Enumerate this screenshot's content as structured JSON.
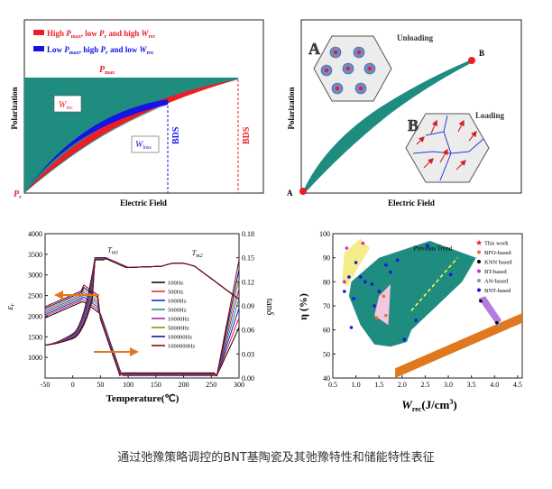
{
  "caption": "通过弛豫策略调控的BNT基陶瓷及其弛豫特性和储能特性表征",
  "colors": {
    "teal": "#1f8c80",
    "red": "#ee1c24",
    "blue": "#1414e6",
    "orange": "#e0781e"
  },
  "panel_a": {
    "legend_high": {
      "main": "High ",
      "p": "P",
      "pmax_sub": "max",
      "sep1": ", low ",
      "pr": "P",
      "pr_sub": "r",
      "sep2": " and high ",
      "w": "W",
      "w_sub": "rec"
    },
    "legend_low": {
      "main": "Low ",
      "p": "P",
      "pmax_sub": "max",
      "sep1": ", high ",
      "pr": "P",
      "pr_sub": "r",
      "sep2": " and low ",
      "w": "W",
      "w_sub": "rec"
    },
    "pmax": "P",
    "pmax_sub": "max",
    "pr": "P",
    "pr_sub": "r",
    "wrec": "W",
    "wrec_sub": "rec",
    "wloss": "W",
    "wloss_sub": "loss",
    "bds1": "BDS",
    "bds2": "BDS",
    "xlabel": "Electric Field",
    "ylabel": "Polarization"
  },
  "panel_b": {
    "label_a": "A",
    "label_b": "B",
    "unloading": "Unloading",
    "loading": "Loading",
    "inset_a": "A",
    "inset_b": "B",
    "xlabel": "Electric Field",
    "ylabel": "Polarization"
  },
  "chart_data": [
    {
      "type": "line",
      "xlabel": "Temperature(℃)",
      "ylabel_left": "εr",
      "ylabel_right": "tanδ",
      "xlim": [
        -50,
        300
      ],
      "ylim_left": [
        500,
        4000
      ],
      "ylim_right": [
        0,
        0.18
      ],
      "x_ticks": [
        "-50",
        "0",
        "50",
        "100",
        "150",
        "200",
        "250",
        "300"
      ],
      "y_ticks_left": [
        "1000",
        "1500",
        "2000",
        "2500",
        "3000",
        "3500",
        "4000"
      ],
      "y_ticks_right": [
        "0.00",
        "0.03",
        "0.06",
        "0.09",
        "0.12",
        "0.15",
        "0.18"
      ],
      "annotations": [
        {
          "t": "T",
          "sub": "m1",
          "x": 50,
          "y": 3550
        },
        {
          "t": "T",
          "sub": "m2",
          "x": 215,
          "y": 3480
        }
      ],
      "series": [
        {
          "name": "100Hz",
          "color": "#000000",
          "shift": 0
        },
        {
          "name": "500Hz",
          "color": "#ee1c24",
          "shift": 1
        },
        {
          "name": "1000Hz",
          "color": "#1414e6",
          "shift": 2
        },
        {
          "name": "5000Hz",
          "color": "#1f8c80",
          "shift": 3
        },
        {
          "name": "10000Hz",
          "color": "#9b1b9b",
          "shift": 4
        },
        {
          "name": "50000Hz",
          "color": "#888800",
          "shift": 5
        },
        {
          "name": "100000Hz",
          "color": "#0000a0",
          "shift": 6
        },
        {
          "name": "1000000Hz",
          "color": "#800000",
          "shift": 7
        }
      ]
    },
    {
      "type": "scatter",
      "xlabel": "W",
      "xlabel_sub": "rec",
      "xlabel_unit": "(J/cm",
      "xlabel_sup": "3",
      "xlabel_end": ")",
      "ylabel": "η (%)",
      "xlim": [
        0.5,
        4.6
      ],
      "ylim": [
        40,
        100
      ],
      "x_ticks": [
        "0.5",
        "1.0",
        "1.5",
        "2.0",
        "2.5",
        "3.0",
        "3.5",
        "4.0",
        "4.5"
      ],
      "y_ticks": [
        "40",
        "50",
        "60",
        "70",
        "80",
        "90",
        "100"
      ],
      "trend_label": "Previous Trend",
      "legend": [
        {
          "name": "This work",
          "color": "#ee1c24",
          "marker": "star"
        },
        {
          "name": "BFO-based",
          "color": "#e0781e",
          "marker": "circle"
        },
        {
          "name": "KNN based",
          "color": "#000000",
          "marker": "circle"
        },
        {
          "name": "BT-based",
          "color": "#dd22dd",
          "marker": "circle"
        },
        {
          "name": "AN-based",
          "color": "#999999",
          "marker": "circle"
        },
        {
          "name": "BNT-based",
          "color": "#1414e6",
          "marker": "circle"
        }
      ],
      "points": {
        "BNT": [
          [
            0.75,
            76
          ],
          [
            0.85,
            82
          ],
          [
            0.95,
            73
          ],
          [
            1.0,
            88
          ],
          [
            1.1,
            82
          ],
          [
            1.2,
            80
          ],
          [
            1.35,
            79
          ],
          [
            1.5,
            76
          ],
          [
            1.65,
            87
          ],
          [
            1.75,
            84
          ],
          [
            1.9,
            89
          ],
          [
            2.05,
            56
          ],
          [
            2.55,
            95
          ],
          [
            3.05,
            83
          ],
          [
            0.9,
            61
          ],
          [
            1.4,
            70
          ],
          [
            2.3,
            64
          ]
        ],
        "BT": [
          [
            0.75,
            80
          ],
          [
            0.8,
            94
          ],
          [
            1.15,
            96
          ]
        ],
        "BFO": [
          [
            1.45,
            65
          ],
          [
            1.6,
            74
          ],
          [
            1.65,
            66
          ],
          [
            4.5,
            65
          ]
        ],
        "KNN": [
          [
            3.7,
            72
          ],
          [
            4.05,
            63
          ]
        ],
        "AN": [
          [
            4.1,
            62
          ]
        ]
      },
      "regions": {
        "BNT": [
          [
            0.85,
            74
          ],
          [
            1.1,
            62
          ],
          [
            1.4,
            54
          ],
          [
            1.75,
            53
          ],
          [
            2.1,
            55
          ],
          [
            2.2,
            60
          ],
          [
            3.3,
            80
          ],
          [
            3.6,
            90
          ],
          [
            2.6,
            97
          ],
          [
            1.5,
            90
          ],
          [
            0.9,
            80
          ]
        ],
        "BT": [
          [
            0.7,
            80
          ],
          [
            0.75,
            92
          ],
          [
            1.1,
            98
          ],
          [
            1.3,
            94
          ],
          [
            0.8,
            78
          ]
        ],
        "BFO": [
          [
            1.4,
            66
          ],
          [
            1.5,
            74
          ],
          [
            1.75,
            79
          ],
          [
            1.7,
            62
          ]
        ],
        "KNN": [
          [
            3.65,
            73
          ],
          [
            3.8,
            74
          ],
          [
            4.15,
            64
          ],
          [
            4.05,
            62
          ]
        ],
        "BNT_orange": [
          [
            1.85,
            44
          ],
          [
            4.6,
            67
          ],
          [
            4.6,
            63
          ],
          [
            1.85,
            40
          ]
        ]
      },
      "trend": [
        [
          2.2,
          68
        ],
        [
          3.2,
          90
        ]
      ]
    }
  ]
}
